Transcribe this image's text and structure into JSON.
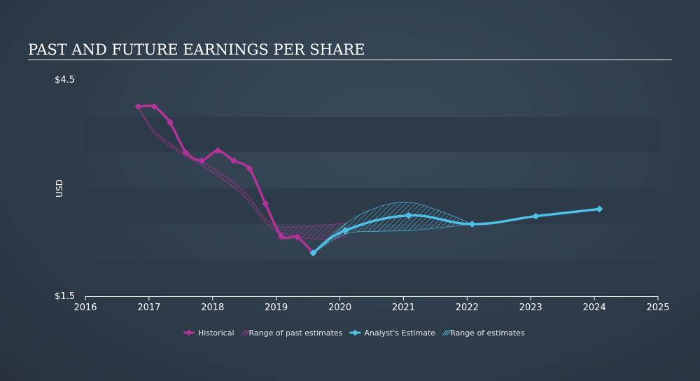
{
  "chart_data": {
    "type": "line",
    "title": "PAST AND FUTURE EARNINGS PER SHARE",
    "ylabel": "USD",
    "xlim": [
      2016,
      2025
    ],
    "ylim": [
      1.5,
      4.5
    ],
    "y_tick_labels": [
      {
        "value": 4.5,
        "label": "$4.5"
      },
      {
        "value": 1.5,
        "label": "$1.5"
      }
    ],
    "x_ticks": [
      2016,
      2017,
      2018,
      2019,
      2020,
      2021,
      2022,
      2023,
      2024,
      2025
    ],
    "colors": {
      "historical": "#b2339a",
      "estimate": "#4fc0e8",
      "band_dark": "#2d3a48",
      "band_light": "#34424f"
    },
    "series": [
      {
        "name": "Historical",
        "x": [
          2016.83,
          2017.08,
          2017.33,
          2017.58,
          2017.83,
          2018.08,
          2018.33,
          2018.58,
          2018.83,
          2019.08,
          2019.33,
          2019.58
        ],
        "y": [
          4.13,
          4.13,
          3.91,
          3.49,
          3.38,
          3.52,
          3.38,
          3.27,
          2.78,
          2.33,
          2.32,
          2.1
        ]
      },
      {
        "name": "Analyst's Estimate",
        "x": [
          2019.58,
          2020.08,
          2021.08,
          2022.08,
          2023.08,
          2024.08
        ],
        "y": [
          2.1,
          2.41,
          2.62,
          2.5,
          2.61,
          2.71
        ]
      }
    ],
    "past_estimate_range": {
      "name": "Range of past estimates",
      "upper": {
        "x": [
          2016.83,
          2017.08,
          2017.5,
          2018.0,
          2018.5,
          2018.9,
          2019.3,
          2019.7,
          2020.1
        ],
        "y": [
          4.13,
          3.8,
          3.52,
          3.28,
          2.95,
          2.52,
          2.46,
          2.48,
          2.52
        ]
      },
      "lower": {
        "x": [
          2016.83,
          2017.08,
          2017.5,
          2018.0,
          2018.5,
          2018.9,
          2019.3,
          2019.7,
          2020.1
        ],
        "y": [
          4.13,
          3.76,
          3.48,
          3.22,
          2.88,
          2.46,
          2.34,
          2.29,
          2.32
        ]
      }
    },
    "future_estimate_range": {
      "name": "Range of estimates",
      "upper": {
        "x": [
          2019.58,
          2020.08,
          2020.58,
          2021.08,
          2021.58,
          2022.08
        ],
        "y": [
          2.1,
          2.5,
          2.73,
          2.8,
          2.68,
          2.5
        ]
      },
      "lower": {
        "x": [
          2019.58,
          2020.08,
          2020.58,
          2021.08,
          2021.58,
          2022.08
        ],
        "y": [
          2.1,
          2.36,
          2.4,
          2.41,
          2.45,
          2.5
        ]
      }
    },
    "legend": {
      "placement": "bottom-center",
      "items": [
        {
          "label": "Historical",
          "kind": "line-marker",
          "color": "#b2339a"
        },
        {
          "label": "Range of past estimates",
          "kind": "hatch",
          "color": "#b2339a"
        },
        {
          "label": "Analyst's Estimate",
          "kind": "line-marker",
          "color": "#4fc0e8"
        },
        {
          "label": "Range of estimates",
          "kind": "hatch",
          "color": "#4fc0e8"
        }
      ]
    }
  }
}
